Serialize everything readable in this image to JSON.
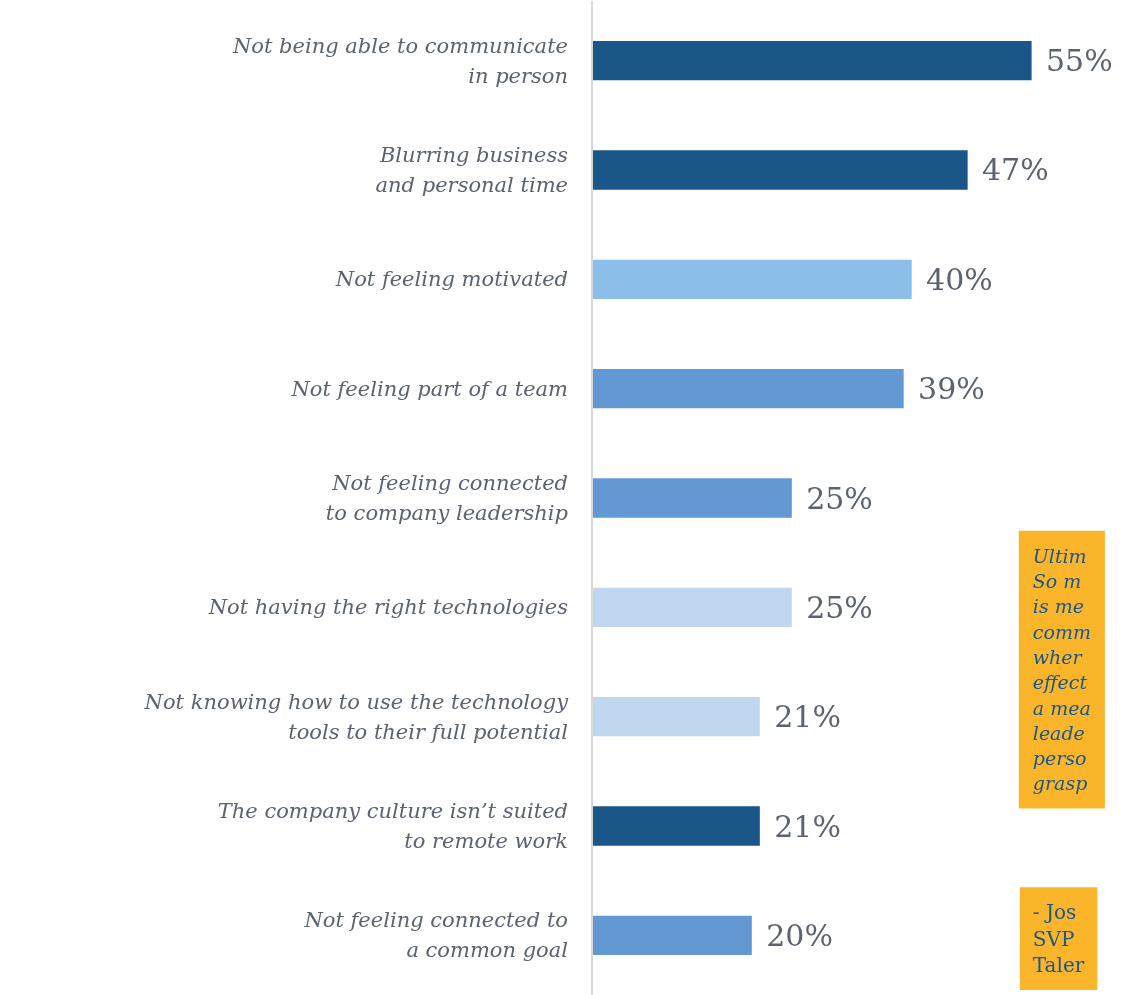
{
  "chart_data": {
    "type": "bar",
    "orientation": "horizontal",
    "categories": [
      "Not being able to communicate\nin person",
      "Blurring business\nand personal time",
      "Not feeling motivated",
      "Not feeling part of a team",
      "Not feeling connected\nto company leadership",
      "Not having the right technologies",
      "Not knowing how to use the technology\ntools to their full potential",
      "The company culture isn’t suited\nto remote work",
      "Not feeling connected to\na common goal"
    ],
    "values": [
      55,
      47,
      40,
      39,
      25,
      25,
      21,
      21,
      20
    ],
    "value_labels": [
      "55%",
      "47%",
      "40%",
      "39%",
      "25%",
      "25%",
      "21%",
      "21%",
      "20%"
    ],
    "colors": [
      "#1a5788",
      "#1a5788",
      "#8bbfea",
      "#6399d3",
      "#6399d3",
      "#bfd7ee",
      "#bfd7ee",
      "#1a5788",
      "#6399d3"
    ],
    "annotations": [
      "Ultim\nSo m\nis me\ncomm\nwher\neffect\na mea\nleade\nperso\ngrasp",
      "- Jos\nSVP\nTaler"
    ],
    "grid": false
  }
}
